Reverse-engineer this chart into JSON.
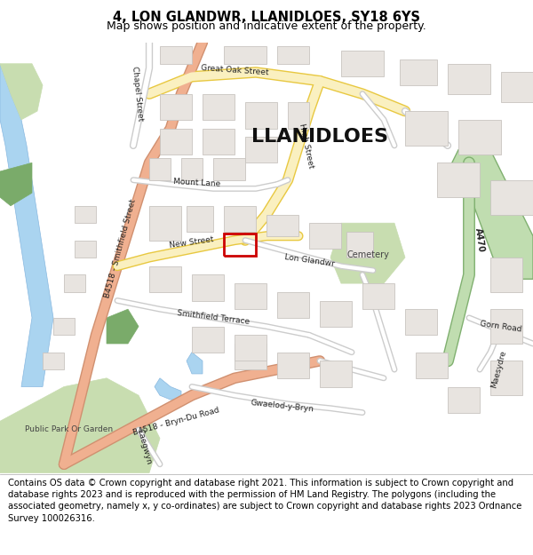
{
  "title": "4, LON GLANDWR, LLANIDLOES, SY18 6YS",
  "subtitle": "Map shows position and indicative extent of the property.",
  "copyright": "Contains OS data © Crown copyright and database right 2021. This information is subject to Crown copyright and database rights 2023 and is reproduced with the permission of HM Land Registry. The polygons (including the associated geometry, namely x, y co-ordinates) are subject to Crown copyright and database rights 2023 Ordnance Survey 100026316.",
  "title_fontsize": 10.5,
  "subtitle_fontsize": 9,
  "copyright_fontsize": 7.2,
  "map_bg": "#f8f8f8",
  "road_yellow_fill": "#faf0c0",
  "road_yellow_border": "#e8c840",
  "road_salmon_fill": "#f0b090",
  "road_salmon_border": "#d09070",
  "road_green_fill": "#c0ddb0",
  "road_green_border": "#80b070",
  "road_white_fill": "#ffffff",
  "road_white_border": "#cccccc",
  "building_color": "#e8e4e0",
  "building_border": "#c8c4c0",
  "green_color": "#c8ddb0",
  "green_dark": "#7aab6a",
  "water_color": "#aad4f0",
  "water_border": "#88b8e0",
  "red_outline_color": "#cc0000",
  "label_llanidloes": "LLANIDLOES",
  "label_fontsize": 16
}
